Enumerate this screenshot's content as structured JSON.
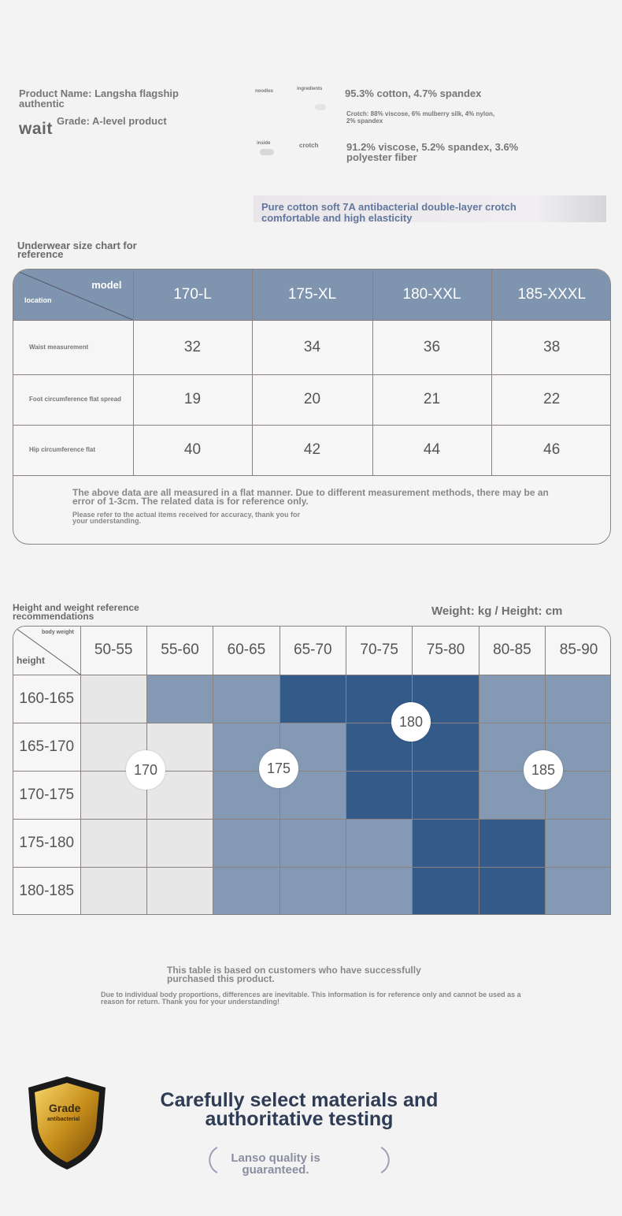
{
  "header": {
    "product_name": "Product Name: Langsha flagship authentic",
    "wait": "wait",
    "grade": "Grade: A-level product",
    "labels": {
      "noodles": "noodles",
      "ingredients": "ingredients",
      "inside": "inside",
      "crotch": "crotch"
    },
    "fabric_main": "95.3% cotton, 4.7% spandex",
    "fabric_crotch": "Crotch: 88% viscose, 6% mulberry silk, 4% nylon, 2% spandex",
    "fabric_inside": "91.2% viscose, 5.2% spandex, 3.6% polyester fiber",
    "banner": "Pure cotton soft 7A antibacterial double-layer crotch comfortable and high elasticity"
  },
  "size_chart": {
    "title": "Underwear size chart for reference",
    "corner_model": "model",
    "corner_location": "location",
    "columns": [
      "170-L",
      "175-XL",
      "180-XXL",
      "185-XXXL"
    ],
    "rows": [
      {
        "label": "Waist measurement",
        "values": [
          "32",
          "34",
          "36",
          "38"
        ]
      },
      {
        "label": "Foot circumference flat spread",
        "values": [
          "19",
          "20",
          "21",
          "22"
        ]
      },
      {
        "label": "Hip circumference flat",
        "values": [
          "40",
          "42",
          "44",
          "46"
        ]
      }
    ],
    "note": "The above data are all measured in a flat manner. Due to different measurement methods, there may be an error of 1-3cm. The related data is for reference only.",
    "note2": "Please refer to the actual items received for accuracy, thank you for your understanding."
  },
  "hw_chart": {
    "title": "Height and weight reference recommendations",
    "units": "Weight: kg / Height: cm",
    "corner_weight": "body weight",
    "corner_height": "height",
    "weights": [
      "50-55",
      "55-60",
      "60-65",
      "65-70",
      "70-75",
      "75-80",
      "80-85",
      "85-90"
    ],
    "heights": [
      "160-165",
      "165-170",
      "170-175",
      "175-180",
      "180-185"
    ],
    "grid": [
      [
        0,
        1,
        1,
        2,
        2,
        2,
        1,
        1
      ],
      [
        0,
        0,
        1,
        1,
        2,
        2,
        1,
        1
      ],
      [
        0,
        0,
        1,
        1,
        2,
        2,
        1,
        1
      ],
      [
        0,
        0,
        1,
        1,
        1,
        2,
        2,
        1
      ],
      [
        0,
        0,
        1,
        1,
        1,
        2,
        2,
        1
      ]
    ],
    "colors": {
      "light": "#e7e7e7",
      "mid": "#8499b4",
      "dark": "#335a88"
    },
    "bubbles": [
      "170",
      "175",
      "180",
      "185"
    ],
    "note": "This table is based on customers who have successfully purchased this product.",
    "note2": "Due to individual body proportions, differences are inevitable. This information is for reference only and cannot be used as a reason for return. Thank you for your understanding!"
  },
  "footer": {
    "badge_grade": "Grade",
    "badge_sub": "antibacterial",
    "headline": "Carefully select materials and authoritative testing",
    "quality": "Lanso quality is guaranteed."
  }
}
